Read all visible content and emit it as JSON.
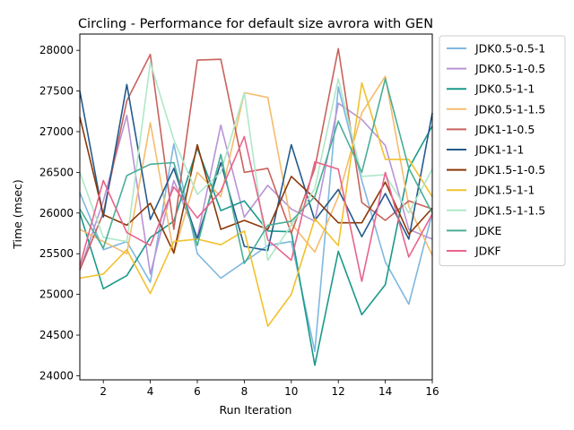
{
  "chart_data": {
    "type": "line",
    "title": "Circling - Performance for default size avrora with GEN",
    "xlabel": "Run Iteration",
    "ylabel": "Time (msec)",
    "xlim": [
      1,
      16
    ],
    "ylim": [
      23950,
      28200
    ],
    "x_ticks": [
      2,
      4,
      6,
      8,
      10,
      12,
      14,
      16
    ],
    "y_ticks": [
      24000,
      24500,
      25000,
      25500,
      26000,
      26500,
      27000,
      27500,
      28000
    ],
    "grid": false,
    "legend_position": "outside-right-top",
    "x": [
      1,
      2,
      3,
      4,
      5,
      6,
      7,
      8,
      9,
      10,
      11,
      12,
      13,
      14,
      15,
      16
    ],
    "series": [
      {
        "name": "JDK0.5-0.5-1",
        "color": "#7fb8e0",
        "values": [
          26250,
          25550,
          25650,
          25150,
          26850,
          25500,
          25200,
          25400,
          25600,
          25650,
          24300,
          27550,
          26400,
          25400,
          24880,
          26000
        ]
      },
      {
        "name": "JDK0.5-1-0.5",
        "color": "#b993d6",
        "values": [
          25300,
          26150,
          27200,
          25250,
          26400,
          25700,
          27080,
          25950,
          26340,
          26050,
          25900,
          27350,
          27150,
          26830,
          25800,
          25680
        ]
      },
      {
        "name": "JDK0.5-1-1",
        "color": "#1a9a8a",
        "values": [
          26000,
          25070,
          25230,
          25700,
          25900,
          26800,
          26030,
          26150,
          25780,
          25770,
          24130,
          25530,
          24750,
          25120,
          26550,
          27070
        ]
      },
      {
        "name": "JDK0.5-1-1.5",
        "color": "#f5bc6c",
        "values": [
          25800,
          25650,
          25500,
          27110,
          25500,
          26500,
          26200,
          27480,
          27420,
          25870,
          25520,
          26200,
          27230,
          27680,
          26080,
          25480
        ]
      },
      {
        "name": "JDK1-1-0.5",
        "color": "#c8625c",
        "values": [
          25300,
          26000,
          27380,
          27950,
          25800,
          27880,
          27890,
          26500,
          26550,
          25750,
          26550,
          28020,
          26130,
          25910,
          26150,
          26050
        ]
      },
      {
        "name": "JDK1-1-1",
        "color": "#235b8c",
        "values": [
          27500,
          25950,
          27580,
          25920,
          26550,
          25680,
          26620,
          25590,
          25540,
          26840,
          25910,
          26290,
          25710,
          26240,
          25680,
          27230
        ]
      },
      {
        "name": "JDK1.5-1-0.5",
        "color": "#8b3808",
        "values": [
          27180,
          25980,
          25850,
          26120,
          25510,
          26840,
          25800,
          25910,
          25800,
          26450,
          26180,
          25880,
          25880,
          26380,
          25740,
          26060
        ]
      },
      {
        "name": "JDK1.5-1-1",
        "color": "#f2c12e",
        "values": [
          25200,
          25250,
          25550,
          25010,
          25650,
          25680,
          25610,
          25780,
          24610,
          25000,
          25930,
          25600,
          27600,
          26660,
          26660,
          26200
        ]
      },
      {
        "name": "JDK1.5-1-1.5",
        "color": "#aee8c8",
        "values": [
          26500,
          25700,
          25650,
          27850,
          26900,
          26230,
          26500,
          27480,
          25420,
          25850,
          26300,
          27650,
          26450,
          26470,
          26000,
          26540
        ]
      },
      {
        "name": "JDKE",
        "color": "#4aae96",
        "values": [
          26050,
          25570,
          26460,
          26600,
          26620,
          25600,
          26720,
          25380,
          25850,
          25900,
          26200,
          27130,
          26500,
          27650,
          26550,
          26000
        ]
      },
      {
        "name": "JDKF",
        "color": "#e8648c",
        "values": [
          25350,
          26400,
          25760,
          25600,
          26320,
          25940,
          26270,
          26940,
          25670,
          25420,
          26630,
          26540,
          25160,
          26500,
          25460,
          25990
        ]
      }
    ]
  }
}
